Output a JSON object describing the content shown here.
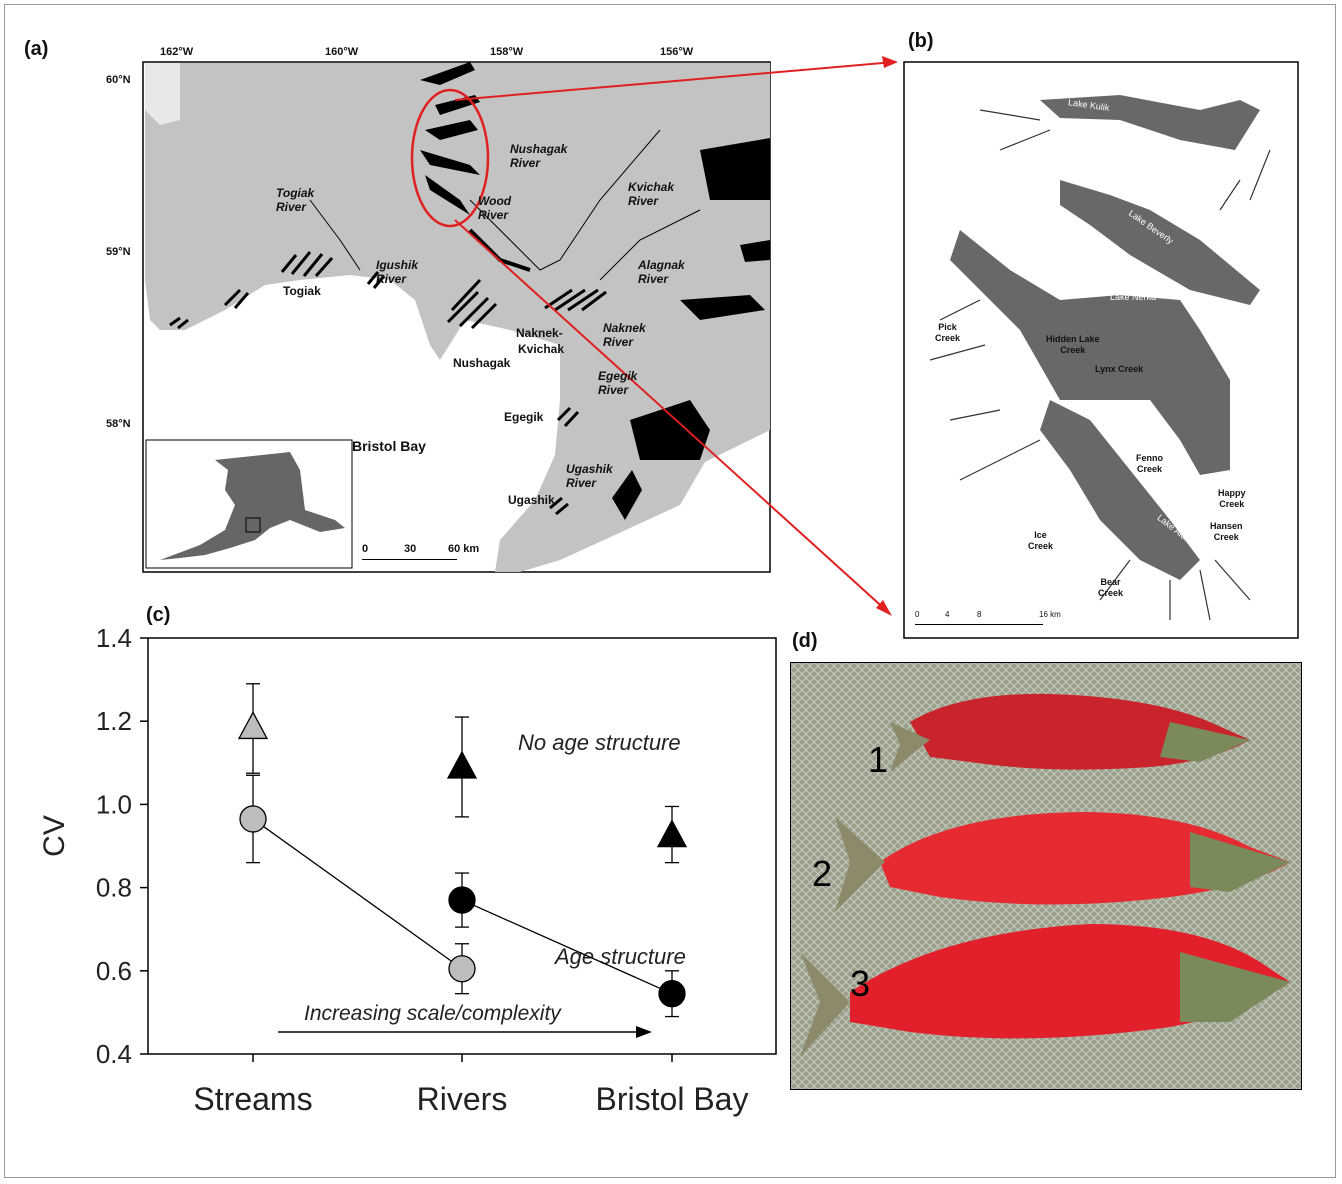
{
  "panels": {
    "a": {
      "label": "(a)",
      "lon_ticks": [
        "162°W",
        "160°W",
        "158°W",
        "156°W"
      ],
      "lat_ticks": [
        "60°N",
        "59°N",
        "58°N"
      ],
      "rivers": [
        {
          "l1": "Togiak",
          "l2": "River"
        },
        {
          "l1": "Igushik",
          "l2": "River"
        },
        {
          "l1": "Nushagak",
          "l2": "River"
        },
        {
          "l1": "Wood",
          "l2": "River"
        },
        {
          "l1": "Kvichak",
          "l2": "River"
        },
        {
          "l1": "Alagnak",
          "l2": "River"
        },
        {
          "l1": "Naknek",
          "l2": "River"
        },
        {
          "l1": "Egegik",
          "l2": "River"
        },
        {
          "l1": "Ugashik",
          "l2": "River"
        }
      ],
      "districts": [
        "Togiak",
        "Nushagak",
        "Naknek-",
        "Kvichak",
        "Egegik",
        "Ugashik"
      ],
      "region": "Bristol Bay",
      "scale": {
        "ticks": [
          "0",
          "30",
          "60 km"
        ]
      }
    },
    "b": {
      "label": "(b)",
      "lakes": [
        "Lake Kulik",
        "Lake Beverly",
        "Lake Nerka",
        "Lake Aleknagik"
      ],
      "creeks": [
        {
          "l1": "Pick",
          "l2": "Creek"
        },
        {
          "l1": "Hidden Lake",
          "l2": "Creek"
        },
        {
          "l1": "Lynx Creek",
          "l2": ""
        },
        {
          "l1": "Fenno",
          "l2": "Creek"
        },
        {
          "l1": "Happy",
          "l2": "Creek"
        },
        {
          "l1": "Hansen",
          "l2": "Creek"
        },
        {
          "l1": "Ice",
          "l2": "Creek"
        },
        {
          "l1": "Bear",
          "l2": "Creek"
        }
      ],
      "scale": {
        "ticks": [
          "0",
          "4",
          "8",
          "16 km"
        ]
      }
    },
    "c": {
      "label": "(c)"
    },
    "d": {
      "label": "(d)",
      "fish_numbers": [
        "1",
        "2",
        "3"
      ]
    }
  },
  "chart_data": {
    "type": "scatter",
    "title": "",
    "xlabel": "",
    "ylabel": "CV",
    "categories": [
      "Streams",
      "Rivers",
      "Bristol Bay"
    ],
    "ylim": [
      0.4,
      1.4
    ],
    "yticks": [
      "0.4",
      "0.6",
      "0.8",
      "1.0",
      "1.2",
      "1.4"
    ],
    "grid": false,
    "series": [
      {
        "name": "No age structure",
        "marker": "triangle",
        "points": [
          {
            "x": "Streams",
            "y": 1.185,
            "err_low": 1.075,
            "err_high": 1.29,
            "fill": "#bdbdbd"
          },
          {
            "x": "Rivers",
            "y": 1.09,
            "err_low": 0.97,
            "err_high": 1.21,
            "fill": "#000000"
          },
          {
            "x": "Bristol Bay",
            "y": 0.925,
            "err_low": 0.86,
            "err_high": 0.995,
            "fill": "#000000"
          }
        ]
      },
      {
        "name": "Age structure",
        "marker": "circle",
        "points": [
          {
            "x": "Streams",
            "y": 0.965,
            "err_low": 0.86,
            "err_high": 1.07,
            "fill": "#bdbdbd"
          },
          {
            "x": "Rivers",
            "y": 0.605,
            "err_low": 0.545,
            "err_high": 0.665,
            "fill": "#bdbdbd"
          },
          {
            "x": "Rivers",
            "y": 0.77,
            "err_low": 0.705,
            "err_high": 0.835,
            "fill": "#000000"
          },
          {
            "x": "Bristol Bay",
            "y": 0.545,
            "err_low": 0.49,
            "err_high": 0.6,
            "fill": "#000000"
          }
        ]
      }
    ],
    "annotations": [
      "Increasing scale/complexity"
    ]
  }
}
